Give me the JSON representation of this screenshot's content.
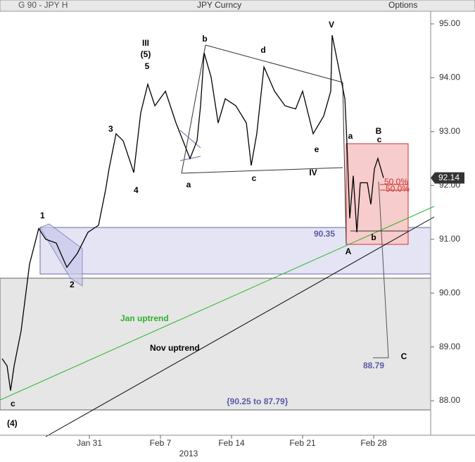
{
  "toolbar": {
    "left": "G 90 - JPY H",
    "center": "JPY Curncy",
    "right": "Options"
  },
  "chart_data": {
    "type": "line",
    "color": "#000000",
    "x": [
      22.41,
      22.89,
      23.24,
      23.59,
      24.28,
      25.11,
      26.01,
      26.7,
      27.74,
      28.78,
      29.82,
      30.86,
      31.9,
      32.6,
      32.94,
      33.63,
      34.33,
      35.37,
      36.06,
      36.75,
      37.45,
      38.49,
      39.53,
      40.22,
      40.91,
      41.6,
      41.95,
      42.3,
      42.99,
      43.68,
      44.38,
      45.42,
      46.46,
      46.94,
      47.49,
      48.19,
      49.23,
      50.27,
      51.31,
      52.0,
      53.04,
      54.08,
      54.77,
      54.91,
      55.46,
      56.16,
      56.36,
      56.64,
      56.99,
      57.34,
      57.68,
      58.37,
      58.72,
      59.07,
      59.41,
      59.97
    ],
    "values": [
      88.78,
      88.65,
      88.19,
      88.65,
      89.3,
      90.54,
      91.2,
      91.0,
      90.93,
      90.48,
      90.74,
      91.13,
      91.26,
      91.92,
      92.31,
      92.96,
      92.83,
      92.24,
      93.35,
      93.88,
      93.48,
      93.75,
      93.16,
      92.83,
      92.5,
      92.83,
      93.48,
      94.46,
      94.01,
      93.16,
      93.61,
      93.48,
      93.16,
      92.37,
      92.96,
      94.2,
      93.75,
      93.48,
      93.42,
      93.75,
      92.96,
      93.29,
      93.75,
      94.79,
      94.27,
      93.61,
      92.83,
      91.39,
      92.18,
      91.13,
      92.05,
      92.05,
      91.65,
      92.31,
      92.5,
      92.14
    ],
    "xlim": [
      22.2,
      64.61
    ],
    "ylim": [
      87.36,
      95.235
    ],
    "yticks": [
      {
        "value": 95,
        "label": "95.00"
      },
      {
        "value": 94,
        "label": "94.00"
      },
      {
        "value": 93,
        "label": "93.00"
      },
      {
        "value": 92,
        "label": "92.00"
      },
      {
        "value": 91,
        "label": "91.00"
      },
      {
        "value": 90,
        "label": "90.00"
      },
      {
        "value": 89,
        "label": "89.00"
      },
      {
        "value": 88,
        "label": "88.00"
      }
    ],
    "xticks": [
      {
        "value": 31,
        "label": "Jan 31"
      },
      {
        "value": 38,
        "label": "Feb 7"
      },
      {
        "value": 45,
        "label": "Feb 14"
      },
      {
        "value": 52,
        "label": "Feb 21"
      },
      {
        "value": 59,
        "label": "Feb 28"
      }
    ],
    "year_label": "2013",
    "last_price": {
      "value": 92.14,
      "label": "92.14"
    },
    "annotations": [
      "c",
      "(4)",
      "1",
      "2",
      "3",
      "4",
      "III",
      "(5)",
      "5",
      "a",
      "b",
      "c",
      "d",
      "e",
      "IV",
      "V",
      "a",
      "B",
      "c",
      "b",
      "A",
      "C",
      "50.0%",
      "50.0%",
      "90.35",
      "88.79",
      "{90.25 to 87.79}",
      "Jan uptrend",
      "Nov uptrend"
    ]
  }
}
